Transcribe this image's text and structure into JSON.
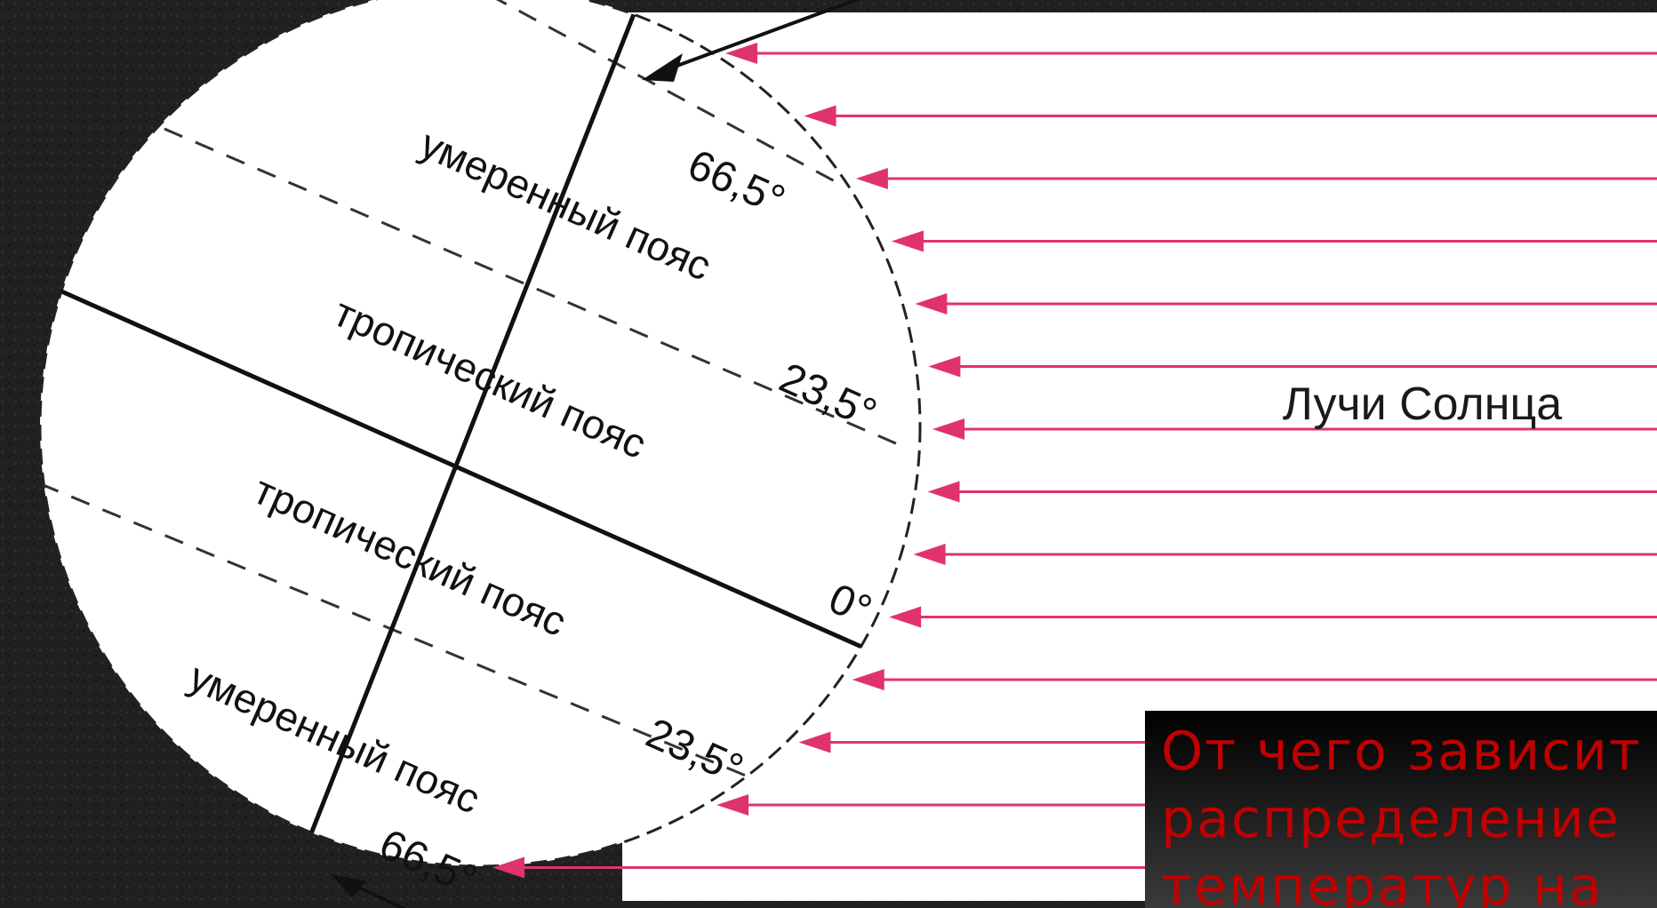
{
  "diagram": {
    "rays_label": "Лучи Солнца",
    "zones": {
      "temperate_north": "умеренный пояс",
      "tropical_north": "тропический пояс",
      "tropical_south": "тропический пояс",
      "temperate_south": "умеренный пояс"
    },
    "latitudes": {
      "n66": "66,5°",
      "n23": "23,5°",
      "equator": "0°",
      "s23": "23,5°",
      "s66": "66,5°"
    },
    "colors": {
      "background": "#1f1f1f",
      "panel": "#ffffff",
      "ray": "#e0336b",
      "line": "#111111",
      "question": "#c00000"
    }
  },
  "question": {
    "text": "От чего зависит распределение температур на"
  }
}
